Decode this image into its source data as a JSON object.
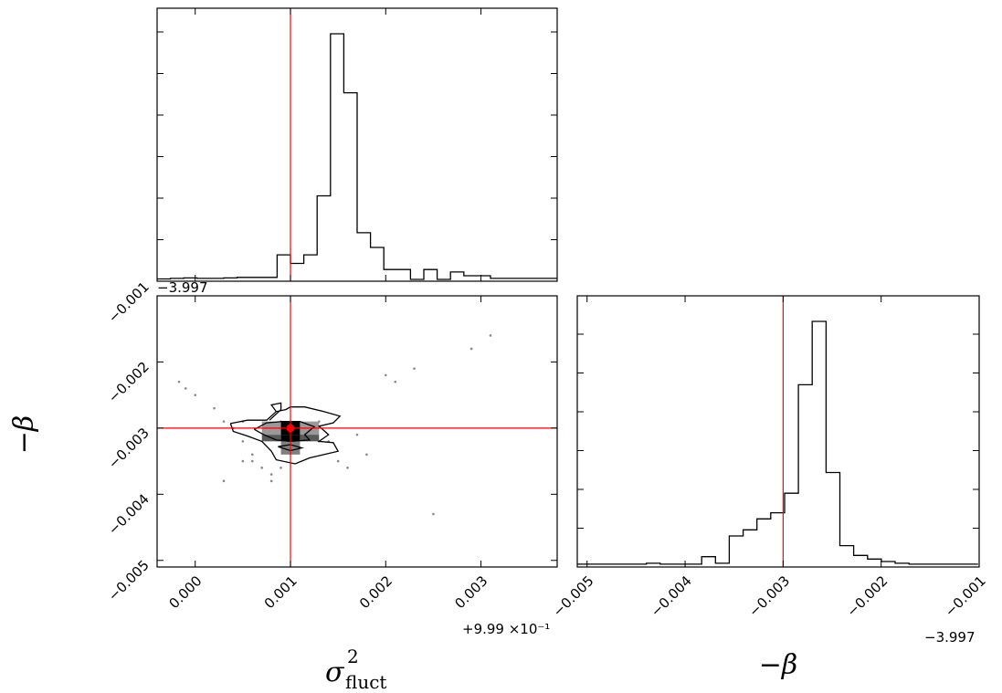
{
  "chart_data": [
    {
      "type": "histogram",
      "panel": "top-left",
      "x_range": [
        -0.0004,
        0.0038
      ],
      "truth": 0.001,
      "bin_width": 0.00014,
      "bin_start": -0.0004,
      "counts": [
        0.002,
        0.004,
        0.006,
        0.004,
        0.004,
        0.006,
        0.008,
        0.008,
        0.008,
        0.1,
        0.065,
        0.1,
        0.34,
        1.0,
        0.76,
        0.19,
        0.13,
        0.04,
        0.04,
        0.0,
        0.04,
        0.0,
        0.03,
        0.015,
        0.015,
        0.004,
        0.004,
        0.004,
        0.004,
        0.004
      ]
    },
    {
      "type": "histogram",
      "panel": "bottom-right",
      "x_range": [
        -0.0051,
        -0.001
      ],
      "truth": -0.003,
      "bin_width": 0.000141,
      "bin_start": -0.0051,
      "counts": [
        0.004,
        0.004,
        0.004,
        0.004,
        0.004,
        0.008,
        0.004,
        0.004,
        0.004,
        0.035,
        0.008,
        0.12,
        0.145,
        0.19,
        0.215,
        0.295,
        0.74,
        1.0,
        0.38,
        0.08,
        0.04,
        0.025,
        0.015,
        0.008,
        0.004,
        0.004,
        0.004,
        0.004,
        0.004
      ]
    },
    {
      "type": "scatter",
      "panel": "bottom-left",
      "x_range": [
        -0.0004,
        0.0038
      ],
      "y_range": [
        -0.0051,
        -0.001
      ],
      "truth": [
        0.001,
        -0.003
      ],
      "points": [
        [
          -0.00017,
          -0.0023
        ],
        [
          -0.0001,
          -0.0024
        ],
        [
          0.0,
          -0.0025
        ],
        [
          0.0002,
          -0.0027
        ],
        [
          0.0003,
          -0.0029
        ],
        [
          0.0004,
          -0.003
        ],
        [
          0.0005,
          -0.0032
        ],
        [
          0.0006,
          -0.0034
        ],
        [
          0.0007,
          -0.0036
        ],
        [
          0.0008,
          -0.0038
        ],
        [
          0.0003,
          -0.0038
        ],
        [
          0.0005,
          -0.0035
        ],
        [
          0.0005,
          -0.0029
        ],
        [
          0.0009,
          -0.0036
        ],
        [
          0.0009,
          -0.0029
        ],
        [
          0.0013,
          -0.0029
        ],
        [
          0.0015,
          -0.0035
        ],
        [
          0.0017,
          -0.0031
        ],
        [
          0.0018,
          -0.0034
        ],
        [
          0.002,
          -0.0022
        ],
        [
          0.0021,
          -0.0023
        ],
        [
          0.0023,
          -0.0021
        ],
        [
          0.0025,
          -0.0043
        ],
        [
          0.0029,
          -0.0018
        ],
        [
          0.0031,
          -0.0016
        ],
        [
          0.0011,
          -0.0031
        ],
        [
          0.001,
          -0.0031
        ],
        [
          0.0012,
          -0.003
        ],
        [
          0.0013,
          -0.0032
        ],
        [
          0.0014,
          -0.0032
        ],
        [
          0.0016,
          -0.0036
        ],
        [
          0.0006,
          -0.0035
        ],
        [
          0.0008,
          -0.0037
        ]
      ],
      "density_cells": [
        {
          "x": [
            0.0009,
            0.0011
          ],
          "y": [
            -0.0032,
            -0.0031
          ],
          "level": 0.0
        },
        {
          "x": [
            0.0007,
            0.0009
          ],
          "y": [
            -0.0031,
            -0.0029
          ],
          "level": 0.6
        },
        {
          "x": [
            0.0009,
            0.0011
          ],
          "y": [
            -0.0031,
            -0.0029
          ],
          "level": 0.0
        },
        {
          "x": [
            0.0011,
            0.0013
          ],
          "y": [
            -0.0031,
            -0.0029
          ],
          "level": 0.6
        },
        {
          "x": [
            0.0007,
            0.0009
          ],
          "y": [
            -0.0032,
            -0.0031
          ],
          "level": 0.35
        },
        {
          "x": [
            0.0011,
            0.0013
          ],
          "y": [
            -0.0032,
            -0.0031
          ],
          "level": 0.35
        },
        {
          "x": [
            0.0009,
            0.0011
          ],
          "y": [
            -0.0034,
            -0.0032
          ],
          "level": 0.5
        }
      ],
      "contour_outer": [
        [
          0.00037,
          -0.00293
        ],
        [
          0.00055,
          -0.00288
        ],
        [
          0.00075,
          -0.00288
        ],
        [
          0.00085,
          -0.00275
        ],
        [
          0.00095,
          -0.00272
        ],
        [
          0.001,
          -0.00268
        ],
        [
          0.00115,
          -0.00268
        ],
        [
          0.00135,
          -0.00275
        ],
        [
          0.00152,
          -0.00282
        ],
        [
          0.00145,
          -0.00292
        ],
        [
          0.0013,
          -0.00297
        ],
        [
          0.0014,
          -0.0031
        ],
        [
          0.0013,
          -0.0032
        ],
        [
          0.00145,
          -0.00322
        ],
        [
          0.0015,
          -0.00335
        ],
        [
          0.00135,
          -0.0034
        ],
        [
          0.0012,
          -0.00345
        ],
        [
          0.00105,
          -0.00354
        ],
        [
          0.00085,
          -0.00348
        ],
        [
          0.0008,
          -0.00335
        ],
        [
          0.0007,
          -0.0032
        ],
        [
          0.00055,
          -0.00312
        ],
        [
          0.0004,
          -0.00305
        ],
        [
          0.00037,
          -0.00293
        ]
      ],
      "contour_inner": [
        [
          0.00062,
          -0.00302
        ],
        [
          0.00075,
          -0.00292
        ],
        [
          0.00092,
          -0.0029
        ],
        [
          0.0011,
          -0.0029
        ],
        [
          0.00125,
          -0.00298
        ],
        [
          0.00115,
          -0.0031
        ],
        [
          0.0012,
          -0.00318
        ],
        [
          0.001,
          -0.0032
        ],
        [
          0.00085,
          -0.00318
        ],
        [
          0.00072,
          -0.0031
        ],
        [
          0.00062,
          -0.00302
        ]
      ],
      "spike": [
        [
          0.00078,
          -0.00288
        ],
        [
          0.0009,
          -0.00272
        ],
        [
          0.0009,
          -0.00262
        ],
        [
          0.0008,
          -0.00265
        ],
        [
          0.00085,
          -0.00275
        ]
      ],
      "small_loop": [
        [
          0.00087,
          -0.00328
        ],
        [
          0.001,
          -0.00325
        ],
        [
          0.00112,
          -0.0033
        ],
        [
          0.001,
          -0.00334
        ],
        [
          0.00087,
          -0.00328
        ]
      ]
    }
  ],
  "axes": {
    "sigma": {
      "ticks": [
        "0.000",
        "0.001",
        "0.002",
        "0.003"
      ],
      "tick_values": [
        0.0,
        0.001,
        0.002,
        0.003
      ],
      "offset": "+9.99 ×10⁻¹",
      "label": "σ²fluct"
    },
    "beta_y": {
      "ticks": [
        "−0.001",
        "−0.002",
        "−0.003",
        "−0.004",
        "−0.005"
      ],
      "tick_values": [
        -0.001,
        -0.002,
        -0.003,
        -0.004,
        -0.005
      ],
      "offset": "−3.997",
      "label": "−β"
    },
    "beta_x": {
      "ticks": [
        "−0.005",
        "−0.004",
        "−0.003",
        "−0.002",
        "−0.001"
      ],
      "tick_values": [
        -0.005,
        -0.004,
        -0.003,
        -0.002,
        -0.001
      ],
      "offset": "−3.997",
      "label": "−β"
    }
  },
  "style": {
    "truth_color": "#ff0000",
    "line_color": "#000000"
  }
}
